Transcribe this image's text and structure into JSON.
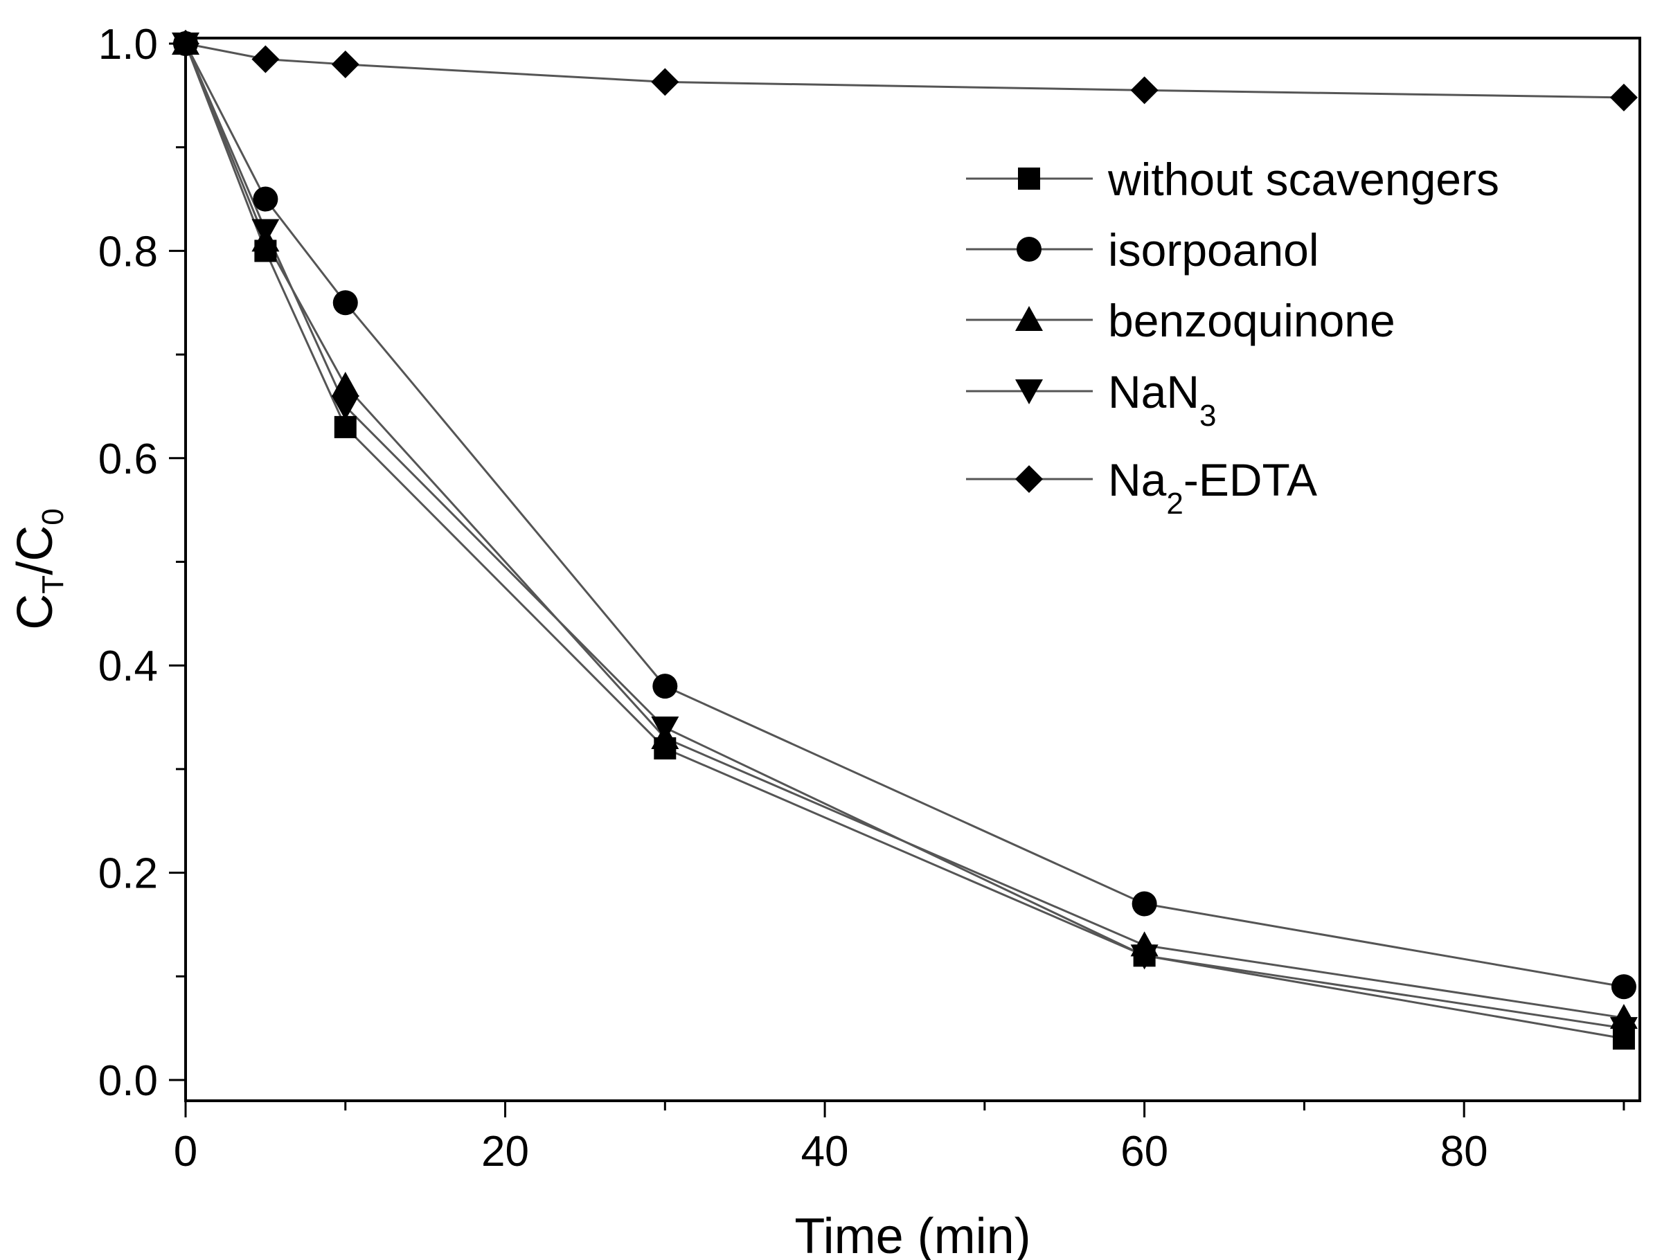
{
  "chart_data": {
    "type": "line",
    "title": "",
    "xlabel": "Time (min)",
    "ylabel": {
      "main": "C",
      "sub1": "T",
      "mid": "/C",
      "sub2": "0"
    },
    "xlim": [
      0,
      91
    ],
    "ylim": [
      0,
      1.0
    ],
    "xticks": [
      0,
      20,
      40,
      60,
      80
    ],
    "yticks": [
      0.0,
      0.2,
      0.4,
      0.6,
      0.8,
      1.0
    ],
    "xtick_labels": [
      "0",
      "20",
      "40",
      "60",
      "80"
    ],
    "ytick_labels": [
      "0.0",
      "0.2",
      "0.4",
      "0.6",
      "0.8",
      "1.0"
    ],
    "grid": false,
    "legend_position": "top-right",
    "x": [
      0,
      5,
      10,
      30,
      60,
      90
    ],
    "series": [
      {
        "name": "without scavengers",
        "legend": {
          "text": "without scavengers"
        },
        "marker": "square",
        "values": [
          1.0,
          0.8,
          0.63,
          0.32,
          0.12,
          0.04
        ]
      },
      {
        "name": "isorpoanol",
        "legend": {
          "text": "isorpoanol"
        },
        "marker": "circle",
        "values": [
          1.0,
          0.85,
          0.75,
          0.38,
          0.17,
          0.09
        ]
      },
      {
        "name": "benzoquinone",
        "legend": {
          "text": "benzoquinone"
        },
        "marker": "triangle-up",
        "values": [
          1.0,
          0.81,
          0.67,
          0.33,
          0.13,
          0.06
        ]
      },
      {
        "name": "NaN3",
        "legend": {
          "text": "NaN",
          "sub": "3"
        },
        "marker": "triangle-down",
        "values": [
          1.0,
          0.82,
          0.65,
          0.34,
          0.12,
          0.05
        ]
      },
      {
        "name": "Na2-EDTA",
        "legend": {
          "text": "Na",
          "sub": "2",
          "suffix": "-EDTA"
        },
        "marker": "diamond",
        "values": [
          1.0,
          0.985,
          0.98,
          0.963,
          0.955,
          0.948
        ]
      }
    ]
  }
}
